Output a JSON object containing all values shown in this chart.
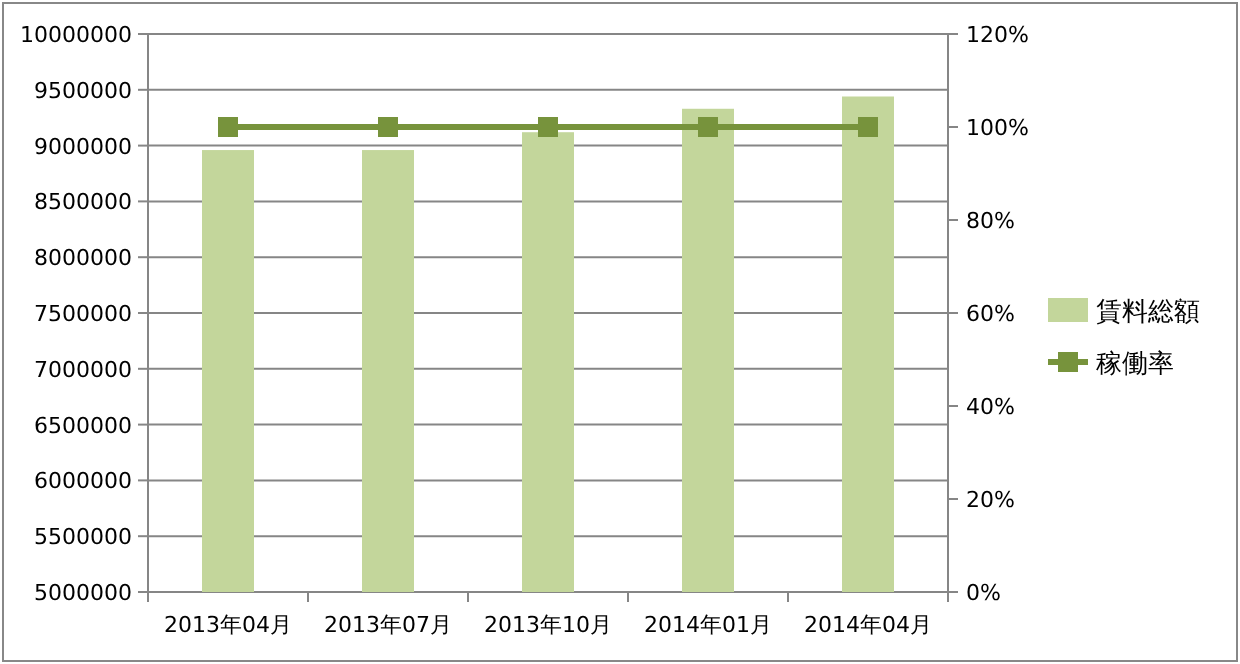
{
  "chart_data": {
    "type": "bar",
    "categories": [
      "2013年04月",
      "2013年07月",
      "2013年10月",
      "2014年01月",
      "2014年04月"
    ],
    "series": [
      {
        "name": "賃料総額",
        "color": "#c3d69b",
        "values": [
          8960000,
          8960000,
          9120000,
          9330000,
          9440000
        ]
      },
      {
        "name": "稼働率",
        "type": "line",
        "axis": "y2",
        "color": "#77933c",
        "values": [
          100,
          100,
          100,
          100,
          100
        ]
      }
    ],
    "ylim": [
      5000000,
      10000000
    ],
    "yticks": [
      5000000,
      5500000,
      6000000,
      6500000,
      7000000,
      7500000,
      8000000,
      8500000,
      9000000,
      9500000,
      10000000
    ],
    "y2lim": [
      0,
      120
    ],
    "y2ticks": [
      {
        "value": 0,
        "label": "0%"
      },
      {
        "value": 20,
        "label": "20%"
      },
      {
        "value": 40,
        "label": "40%"
      },
      {
        "value": 60,
        "label": "60%"
      },
      {
        "value": 80,
        "label": "80%"
      },
      {
        "value": 100,
        "label": "100%"
      },
      {
        "value": 120,
        "label": "120%"
      }
    ],
    "grid": "y",
    "legend": "right",
    "marker": "square"
  }
}
